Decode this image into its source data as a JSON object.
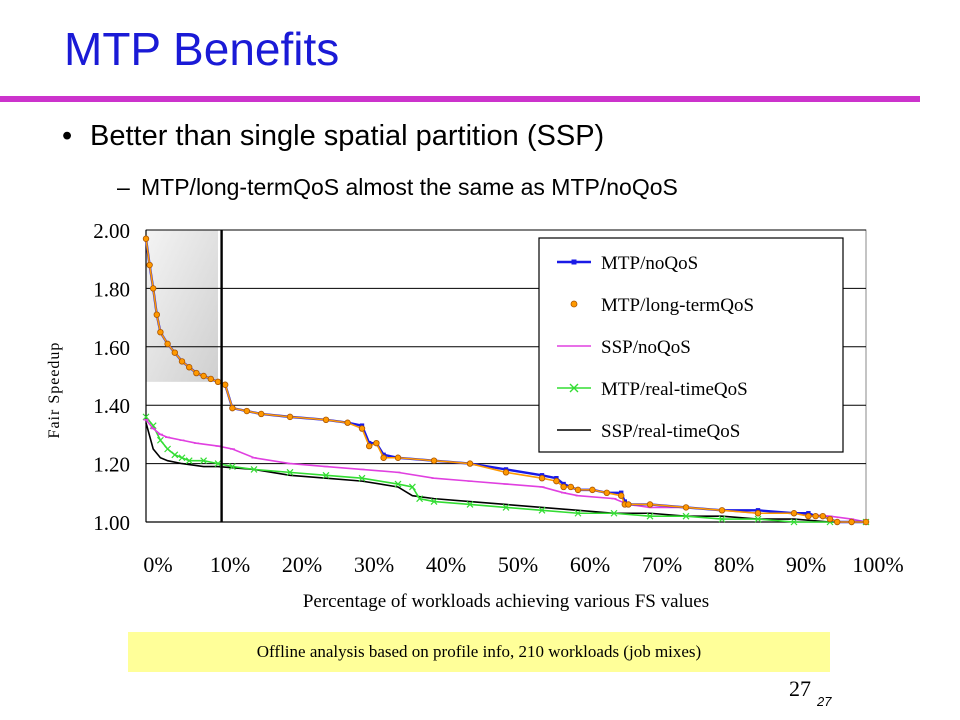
{
  "slide": {
    "title": "MTP Benefits",
    "bullet": "Better than single spatial partition (SSP)",
    "sub_bullet": "MTP/long-termQoS almost the same as MTP/noQoS",
    "footnote": "Offline analysis based on profile info, 210 workloads (job mixes)",
    "page_number": "27",
    "page_number_small": "27"
  },
  "colors": {
    "title": "#1a1ad6",
    "rule": "#cc33cc",
    "note_bg": "#ffff99"
  },
  "chart_data": {
    "type": "line",
    "xlabel": "Percentage of workloads achieving various FS values",
    "ylabel": "Fair Speedup",
    "ylim": [
      1.0,
      2.0
    ],
    "xlim": [
      0,
      100
    ],
    "y_ticks": [
      "1.00",
      "1.20",
      "1.40",
      "1.60",
      "1.80",
      "2.00"
    ],
    "x_ticks": [
      "0%",
      "10%",
      "20%",
      "30%",
      "40%",
      "50%",
      "60%",
      "70%",
      "80%",
      "90%",
      "100%"
    ],
    "grid": "horizontal",
    "legend_position": "top-right",
    "highlight_region": {
      "x": [
        0,
        10
      ],
      "y": [
        1.48,
        2.0
      ]
    },
    "vertical_marker_x": 10.5,
    "series": [
      {
        "name": "MTP/noQoS",
        "color": "#1a1ae6",
        "marker": "square",
        "x": [
          0,
          0.5,
          1,
          1.5,
          2,
          3,
          4,
          5,
          6,
          7,
          8,
          9,
          10,
          11,
          12,
          14,
          16,
          20,
          25,
          28,
          30,
          31,
          32,
          33,
          35,
          40,
          45,
          50,
          55,
          57,
          58,
          59,
          60,
          62,
          64,
          66,
          66.5,
          67,
          70,
          75,
          80,
          85,
          90,
          92,
          93,
          94,
          95,
          96,
          98,
          100
        ],
        "y": [
          1.97,
          1.88,
          1.8,
          1.71,
          1.65,
          1.61,
          1.58,
          1.55,
          1.53,
          1.51,
          1.5,
          1.49,
          1.48,
          1.47,
          1.39,
          1.38,
          1.37,
          1.36,
          1.35,
          1.34,
          1.33,
          1.27,
          1.27,
          1.23,
          1.22,
          1.21,
          1.2,
          1.18,
          1.16,
          1.15,
          1.13,
          1.12,
          1.11,
          1.11,
          1.1,
          1.1,
          1.07,
          1.06,
          1.06,
          1.05,
          1.04,
          1.04,
          1.03,
          1.03,
          1.02,
          1.02,
          1.01,
          1.0,
          1.0,
          1.0
        ]
      },
      {
        "name": "MTP/long-termQoS",
        "color": "#ff9900",
        "marker": "circle",
        "x": [
          0,
          0.5,
          1,
          1.5,
          2,
          3,
          4,
          5,
          6,
          7,
          8,
          9,
          10,
          11,
          12,
          14,
          16,
          20,
          25,
          28,
          30,
          31,
          32,
          33,
          35,
          40,
          45,
          50,
          55,
          57,
          58,
          59,
          60,
          62,
          64,
          66,
          66.5,
          67,
          70,
          75,
          80,
          85,
          90,
          92,
          93,
          94,
          95,
          96,
          98,
          100
        ],
        "y": [
          1.97,
          1.88,
          1.8,
          1.71,
          1.65,
          1.61,
          1.58,
          1.55,
          1.53,
          1.51,
          1.5,
          1.49,
          1.48,
          1.47,
          1.39,
          1.38,
          1.37,
          1.36,
          1.35,
          1.34,
          1.32,
          1.26,
          1.27,
          1.22,
          1.22,
          1.21,
          1.2,
          1.17,
          1.15,
          1.14,
          1.12,
          1.12,
          1.11,
          1.11,
          1.1,
          1.09,
          1.06,
          1.06,
          1.06,
          1.05,
          1.04,
          1.03,
          1.03,
          1.02,
          1.02,
          1.02,
          1.01,
          1.0,
          1.0,
          1.0
        ]
      },
      {
        "name": "SSP/noQoS",
        "color": "#e040e0",
        "marker": "dash",
        "x": [
          0,
          1,
          2,
          3,
          5,
          7,
          10,
          12,
          15,
          20,
          25,
          30,
          35,
          40,
          45,
          50,
          55,
          58,
          60,
          65,
          67,
          70,
          75,
          80,
          85,
          90,
          95,
          98,
          100
        ],
        "y": [
          1.35,
          1.32,
          1.3,
          1.29,
          1.28,
          1.27,
          1.26,
          1.25,
          1.22,
          1.2,
          1.19,
          1.18,
          1.17,
          1.15,
          1.14,
          1.13,
          1.12,
          1.1,
          1.09,
          1.08,
          1.06,
          1.05,
          1.05,
          1.04,
          1.03,
          1.03,
          1.02,
          1.01,
          1.0
        ]
      },
      {
        "name": "MTP/real-timeQoS",
        "color": "#33dd33",
        "marker": "x",
        "x": [
          0,
          1,
          2,
          3,
          4,
          5,
          6,
          8,
          10,
          12,
          15,
          20,
          25,
          30,
          35,
          37,
          38,
          40,
          45,
          50,
          55,
          60,
          65,
          70,
          75,
          80,
          85,
          90,
          95,
          100
        ],
        "y": [
          1.36,
          1.33,
          1.28,
          1.25,
          1.23,
          1.22,
          1.21,
          1.21,
          1.2,
          1.19,
          1.18,
          1.17,
          1.16,
          1.15,
          1.13,
          1.12,
          1.08,
          1.07,
          1.06,
          1.05,
          1.04,
          1.03,
          1.03,
          1.02,
          1.02,
          1.01,
          1.01,
          1.0,
          1.0,
          1.0
        ]
      },
      {
        "name": "SSP/real-timeQoS",
        "color": "#000000",
        "marker": "none",
        "x": [
          0,
          1,
          2,
          3,
          5,
          8,
          10,
          15,
          20,
          25,
          30,
          35,
          37,
          40,
          45,
          50,
          55,
          60,
          65,
          70,
          75,
          80,
          85,
          90,
          95,
          100
        ],
        "y": [
          1.34,
          1.25,
          1.22,
          1.21,
          1.2,
          1.19,
          1.19,
          1.18,
          1.16,
          1.15,
          1.14,
          1.12,
          1.09,
          1.08,
          1.07,
          1.06,
          1.05,
          1.04,
          1.03,
          1.03,
          1.02,
          1.02,
          1.01,
          1.01,
          1.0,
          1.0
        ]
      }
    ]
  }
}
